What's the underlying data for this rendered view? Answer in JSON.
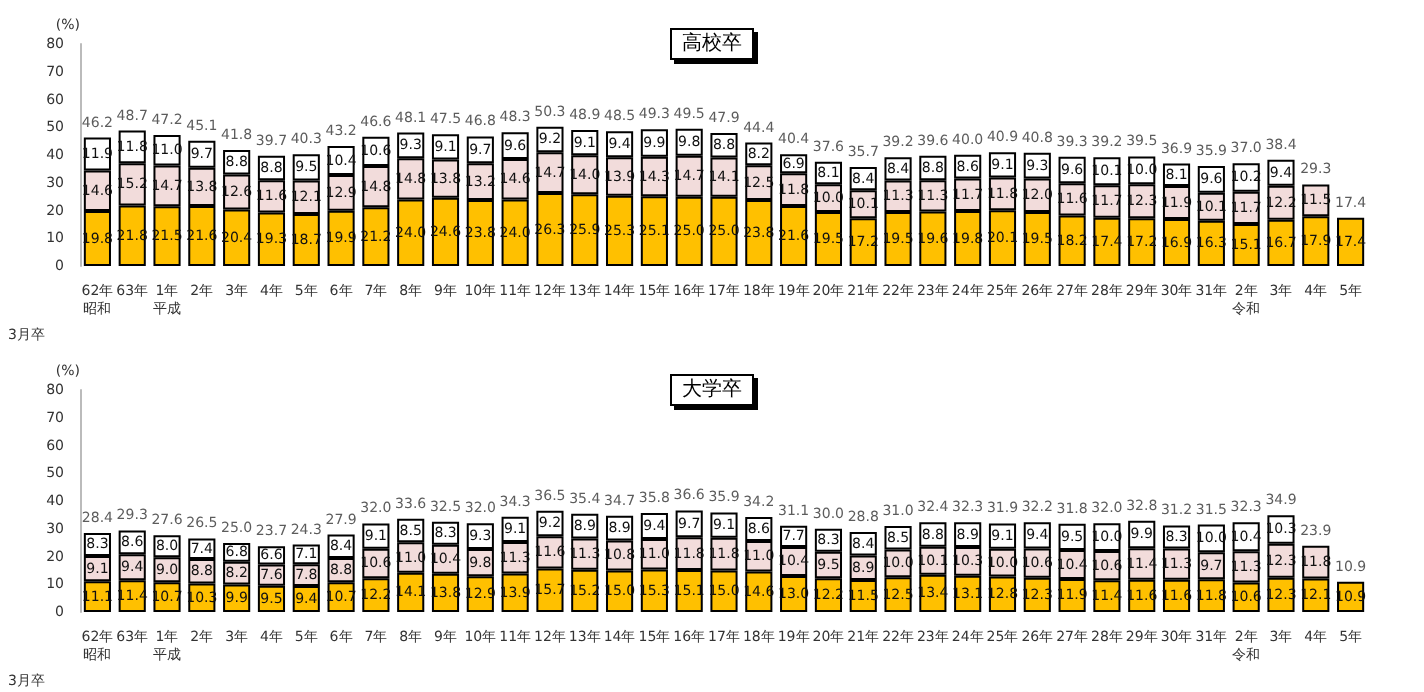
{
  "chart_data": [
    {
      "type": "bar",
      "title": "高校卒",
      "ylabel": "(%)",
      "stacked": true,
      "ylim": [
        0,
        80
      ],
      "yticks": [
        0,
        10,
        20,
        30,
        40,
        50,
        60,
        70,
        80
      ],
      "annotations": [
        "3月卒"
      ],
      "categories": [
        "62年昭和",
        "63年",
        "1年平成",
        "2年",
        "3年",
        "4年",
        "5年",
        "6年",
        "7年",
        "8年",
        "9年",
        "10年",
        "11年",
        "12年",
        "13年",
        "14年",
        "15年",
        "16年",
        "17年",
        "18年",
        "19年",
        "20年",
        "21年",
        "22年",
        "23年",
        "24年",
        "25年",
        "26年",
        "27年",
        "28年",
        "29年",
        "30年",
        "31年",
        "2年令和",
        "3年",
        "4年",
        "5年"
      ],
      "series": [
        {
          "color": "#ffc000",
          "values": [
            19.8,
            21.8,
            21.5,
            21.6,
            20.4,
            19.3,
            18.7,
            19.9,
            21.2,
            24.0,
            24.6,
            23.8,
            24.0,
            26.3,
            25.9,
            25.3,
            25.1,
            25.0,
            25.0,
            23.8,
            21.6,
            19.5,
            17.2,
            19.5,
            19.6,
            19.8,
            20.1,
            19.5,
            18.2,
            17.4,
            17.2,
            16.9,
            16.3,
            15.1,
            16.7,
            17.9,
            17.4
          ],
          "value_labels": [
            "19.8",
            "21.8",
            "21.5",
            "21.6",
            "20.4",
            "19.3",
            "18.7",
            "19.9",
            "21.2",
            "24.0",
            "24.6",
            "23.8",
            "24.0",
            "26.3",
            "25.9",
            "25.3",
            "25.1",
            "25.0",
            "25.0",
            "23.8",
            "21.6",
            "19.5",
            "17.2",
            "19.5",
            "19.6",
            "19.8",
            "20.1",
            "19.5",
            "18.2",
            "17.4",
            "17.2",
            "16.9",
            "16.3",
            "15.1",
            "16.7",
            "17.9",
            "17.4"
          ]
        },
        {
          "color": "#f2dcdb",
          "values": [
            14.6,
            15.2,
            14.7,
            13.8,
            12.6,
            11.6,
            12.1,
            12.9,
            14.8,
            14.8,
            13.8,
            13.2,
            14.6,
            14.7,
            14.0,
            13.9,
            14.3,
            14.7,
            14.1,
            12.5,
            11.8,
            10.0,
            10.1,
            11.3,
            11.3,
            11.7,
            11.8,
            12.0,
            11.6,
            11.7,
            12.3,
            11.9,
            10.1,
            11.7,
            12.2,
            11.5,
            null
          ],
          "value_labels": [
            "14.6",
            "15.2",
            "14.7",
            "13.8",
            "12.6",
            "11.6",
            "12.1",
            "12.9",
            "14.8",
            "14.8",
            "13.8",
            "13.2",
            "14.6",
            "14.7",
            "14.0",
            "13.9",
            "14.3",
            "14.7",
            "14.1",
            "12.5",
            "11.8",
            "10.0",
            "10.1",
            "11.3",
            "11.3",
            "11.7",
            "11.8",
            "12.0",
            "11.6",
            "11.7",
            "12.3",
            "11.9",
            "10.1",
            "11.7",
            "12.2",
            "11.5",
            null
          ]
        },
        {
          "color": "#ffffff",
          "values": [
            11.9,
            11.8,
            11.0,
            9.7,
            8.8,
            8.8,
            9.5,
            10.4,
            10.6,
            9.3,
            9.1,
            9.7,
            9.6,
            9.2,
            9.1,
            9.4,
            9.9,
            9.8,
            8.8,
            8.2,
            6.9,
            8.1,
            8.4,
            8.4,
            8.8,
            8.6,
            9.1,
            9.3,
            9.6,
            10.1,
            10.0,
            8.1,
            9.6,
            10.2,
            9.4,
            null,
            null
          ],
          "value_labels": [
            "11.9",
            "11.8",
            "11.0",
            "9.7",
            "8.8",
            "8.8",
            "9.5",
            "10.4",
            "10.6",
            "9.3",
            "9.1",
            "9.7",
            "9.6",
            "9.2",
            "9.1",
            "9.4",
            "9.9",
            "9.8",
            "8.8",
            "8.2",
            "6.9",
            "8.1",
            "8.4",
            "8.4",
            "8.8",
            "8.6",
            "9.1",
            "9.3",
            "9.6",
            "10.1",
            "10.0",
            "8.1",
            "9.6",
            "10.2",
            "9.4",
            null,
            null
          ]
        }
      ],
      "totals": [
        "46.2",
        "48.7",
        "47.2",
        "45.1",
        "41.8",
        "39.7",
        "40.3",
        "43.2",
        "46.6",
        "48.1",
        "47.5",
        "46.8",
        "48.3",
        "50.3",
        "48.9",
        "48.5",
        "49.3",
        "49.5",
        "47.9",
        "44.4",
        "40.4",
        "37.6",
        "35.7",
        "39.2",
        "39.6",
        "40.0",
        "40.9",
        "40.8",
        "39.3",
        "39.2",
        "39.5",
        "36.9",
        "35.9",
        "37.0",
        "38.4",
        "29.3",
        "17.4"
      ]
    },
    {
      "type": "bar",
      "title": "大学卒",
      "ylabel": "(%)",
      "stacked": true,
      "ylim": [
        0,
        80
      ],
      "yticks": [
        0,
        10,
        20,
        30,
        40,
        50,
        60,
        70,
        80
      ],
      "annotations": [
        "3月卒"
      ],
      "categories": [
        "62年昭和",
        "63年",
        "1年平成",
        "2年",
        "3年",
        "4年",
        "5年",
        "6年",
        "7年",
        "8年",
        "9年",
        "10年",
        "11年",
        "12年",
        "13年",
        "14年",
        "15年",
        "16年",
        "17年",
        "18年",
        "19年",
        "20年",
        "21年",
        "22年",
        "23年",
        "24年",
        "25年",
        "26年",
        "27年",
        "28年",
        "29年",
        "30年",
        "31年",
        "2年令和",
        "3年",
        "4年",
        "5年"
      ],
      "series": [
        {
          "color": "#ffc000",
          "values": [
            11.1,
            11.4,
            10.7,
            10.3,
            9.9,
            9.5,
            9.4,
            10.7,
            12.2,
            14.1,
            13.8,
            12.9,
            13.9,
            15.7,
            15.2,
            15.0,
            15.3,
            15.1,
            15.0,
            14.6,
            13.0,
            12.2,
            11.5,
            12.5,
            13.4,
            13.1,
            12.8,
            12.3,
            11.9,
            11.4,
            11.6,
            11.6,
            11.8,
            10.6,
            12.3,
            12.1,
            10.9
          ],
          "value_labels": [
            "11.1",
            "11.4",
            "10.7",
            "10.3",
            "9.9",
            "9.5",
            "9.4",
            "10.7",
            "12.2",
            "14.1",
            "13.8",
            "12.9",
            "13.9",
            "15.7",
            "15.2",
            "15.0",
            "15.3",
            "15.1",
            "15.0",
            "14.6",
            "13.0",
            "12.2",
            "11.5",
            "12.5",
            "13.4",
            "13.1",
            "12.8",
            "12.3",
            "11.9",
            "11.4",
            "11.6",
            "11.6",
            "11.8",
            "10.6",
            "12.3",
            "12.1",
            "10.9"
          ]
        },
        {
          "color": "#f2dcdb",
          "values": [
            9.1,
            9.4,
            9.0,
            8.8,
            8.2,
            7.6,
            7.8,
            8.8,
            10.6,
            11.0,
            10.4,
            9.8,
            11.3,
            11.6,
            11.3,
            10.8,
            11.0,
            11.8,
            11.8,
            11.0,
            10.4,
            9.5,
            8.9,
            10.0,
            10.1,
            10.3,
            10.0,
            10.6,
            10.4,
            10.6,
            11.4,
            11.3,
            9.7,
            11.3,
            12.3,
            11.8,
            null
          ],
          "value_labels": [
            "9.1",
            "9.4",
            "9.0",
            "8.8",
            "8.2",
            "7.6",
            "7.8",
            "8.8",
            "10.6",
            "11.0",
            "10.4",
            "9.8",
            "11.3",
            "11.6",
            "11.3",
            "10.8",
            "11.0",
            "11.8",
            "11.8",
            "11.0",
            "10.4",
            "9.5",
            "8.9",
            "10.0",
            "10.1",
            "10.3",
            "10.0",
            "10.6",
            "10.4",
            "10.6",
            "11.4",
            "11.3",
            "9.7",
            "11.3",
            "12.3",
            "11.8",
            null
          ]
        },
        {
          "color": "#ffffff",
          "values": [
            8.3,
            8.6,
            8.0,
            7.4,
            6.8,
            6.6,
            7.1,
            8.4,
            9.1,
            8.5,
            8.3,
            9.3,
            9.1,
            9.2,
            8.9,
            8.9,
            9.4,
            9.7,
            9.1,
            8.6,
            7.7,
            8.3,
            8.4,
            8.5,
            8.8,
            8.9,
            9.1,
            9.4,
            9.5,
            10.0,
            9.9,
            8.3,
            10.0,
            10.4,
            10.3,
            null,
            null
          ],
          "value_labels": [
            "8.3",
            "8.6",
            "8.0",
            "7.4",
            "6.8",
            "6.6",
            "7.1",
            "8.4",
            "9.1",
            "8.5",
            "8.3",
            "9.3",
            "9.1",
            "9.2",
            "8.9",
            "8.9",
            "9.4",
            "9.7",
            "9.1",
            "8.6",
            "7.7",
            "8.3",
            "8.4",
            "8.5",
            "8.8",
            "8.9",
            "9.1",
            "9.4",
            "9.5",
            "10.0",
            "9.9",
            "8.3",
            "10.0",
            "10.4",
            "10.3",
            null,
            null
          ]
        }
      ],
      "totals": [
        "28.4",
        "29.3",
        "27.6",
        "26.5",
        "25.0",
        "23.7",
        "24.3",
        "27.9",
        "32.0",
        "33.6",
        "32.5",
        "32.0",
        "34.3",
        "36.5",
        "35.4",
        "34.7",
        "35.8",
        "36.6",
        "35.9",
        "34.2",
        "31.1",
        "30.0",
        "28.8",
        "31.0",
        "32.4",
        "32.3",
        "31.9",
        "32.2",
        "31.8",
        "32.0",
        "32.8",
        "31.2",
        "31.5",
        "32.3",
        "34.9",
        "23.9",
        "10.9"
      ]
    }
  ]
}
